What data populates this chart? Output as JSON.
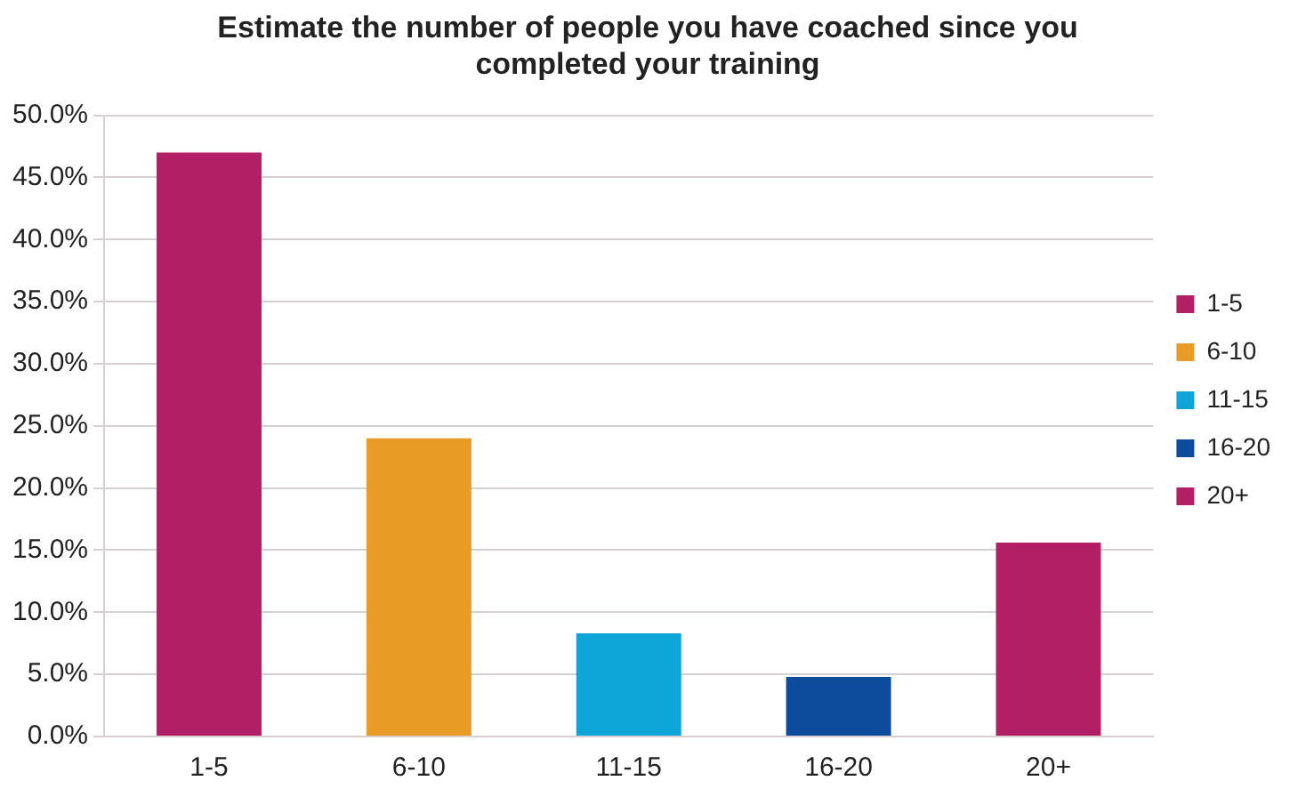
{
  "chart_data": {
    "type": "bar",
    "title": [
      "Estimate the number of people you have coached since you",
      "completed your training"
    ],
    "categories": [
      "1-5",
      "6-10",
      "11-15",
      "16-20",
      "20+"
    ],
    "series": [
      {
        "name": "1-5",
        "color": "#b31f65",
        "values": [
          47.0,
          null,
          null,
          null,
          null
        ]
      },
      {
        "name": "6-10",
        "color": "#e89c25",
        "values": [
          null,
          24.0,
          null,
          null,
          null
        ]
      },
      {
        "name": "11-15",
        "color": "#0ea5d8",
        "values": [
          null,
          null,
          8.3,
          null,
          null
        ]
      },
      {
        "name": "16-20",
        "color": "#0d4c9c",
        "values": [
          null,
          null,
          null,
          4.8,
          null
        ]
      },
      {
        "name": "20+",
        "color": "#b31f65",
        "values": [
          null,
          null,
          null,
          null,
          15.6
        ]
      }
    ],
    "ylim": [
      0,
      50
    ],
    "yticks": [
      {
        "value": 0,
        "label": "0.0%"
      },
      {
        "value": 5,
        "label": "5.0%"
      },
      {
        "value": 10,
        "label": "10.0%"
      },
      {
        "value": 15,
        "label": "15.0%"
      },
      {
        "value": 20,
        "label": "20.0%"
      },
      {
        "value": 25,
        "label": "25.0%"
      },
      {
        "value": 30,
        "label": "30.0%"
      },
      {
        "value": 35,
        "label": "35.0%"
      },
      {
        "value": 40,
        "label": "40.0%"
      },
      {
        "value": 45,
        "label": "45.0%"
      },
      {
        "value": 50,
        "label": "50.0%"
      }
    ],
    "grid": "y",
    "legend": "right"
  }
}
